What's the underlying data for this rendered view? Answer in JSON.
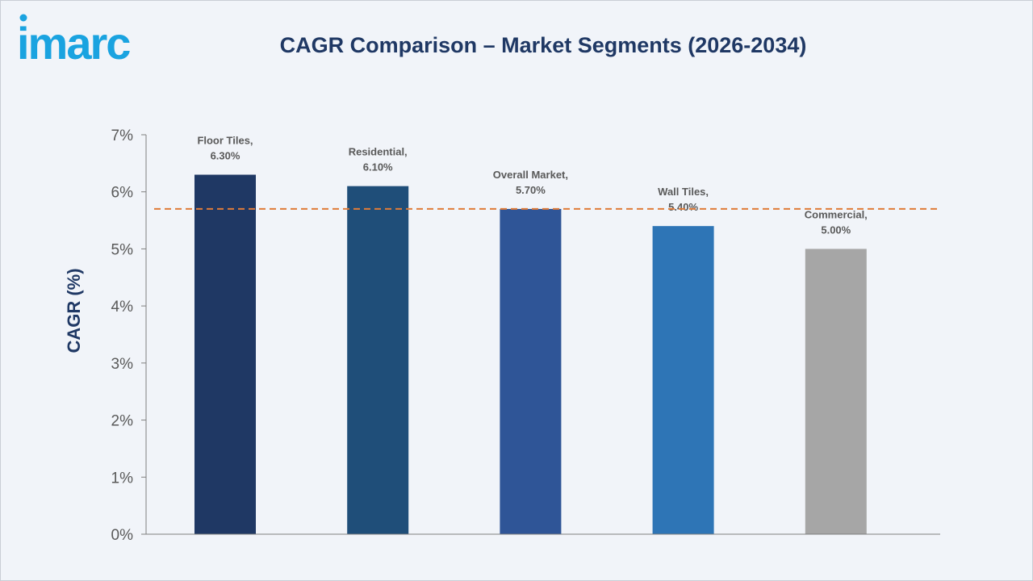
{
  "brand": {
    "logo_text": "imarc",
    "logo_color": "#1aa3e0"
  },
  "chart_data": {
    "type": "bar",
    "title": "CAGR Comparison – Market Segments (2026-2034)",
    "xlabel": "",
    "ylabel": "CAGR (%)",
    "ylim": [
      0,
      7
    ],
    "yticks": [
      "0%",
      "1%",
      "2%",
      "3%",
      "4%",
      "5%",
      "6%",
      "7%"
    ],
    "categories": [
      "Floor Tiles",
      "Residential",
      "Overall Market",
      "Wall Tiles",
      "Commercial"
    ],
    "values": [
      6.3,
      6.1,
      5.7,
      5.4,
      5.0
    ],
    "data_labels": [
      [
        "Floor Tiles,",
        "6.30%"
      ],
      [
        "Residential,",
        "6.10%"
      ],
      [
        "Overall Market,",
        "5.70%"
      ],
      [
        "Wall Tiles,",
        "5.40%"
      ],
      [
        "Commercial,",
        "5.00%"
      ]
    ],
    "bar_colors": [
      "#1f3864",
      "#1f4e79",
      "#2f5597",
      "#2e75b6",
      "#a6a6a6"
    ],
    "reference_line": {
      "value": 5.7,
      "style": "dashed",
      "color": "#e07b39"
    },
    "grid": false,
    "legend": "none"
  }
}
